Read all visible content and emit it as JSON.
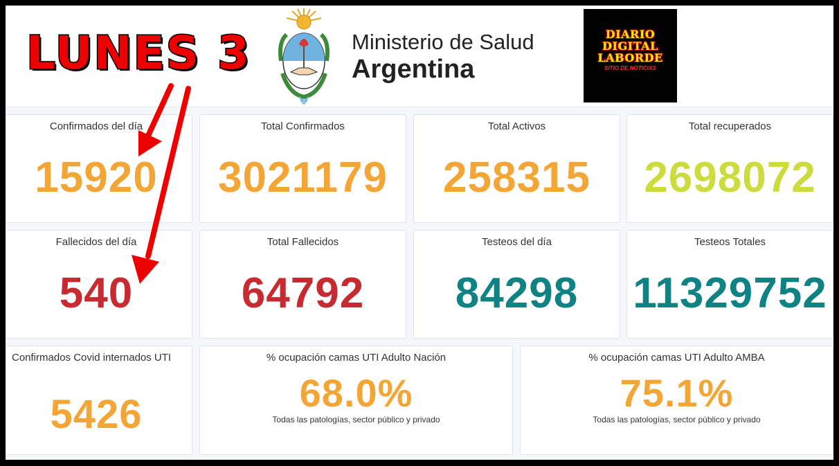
{
  "header": {
    "day_label": "LUNES 3",
    "ministry_line1": "Ministerio de Salud",
    "ministry_line2": "Argentina",
    "coat_of_arms": "coat-of-arms-icon",
    "logo_lines": [
      "DIARIO",
      "DIGITAL",
      "LABORDE"
    ],
    "logo_sub": "SITIO DE NOTICIAS"
  },
  "row1": [
    {
      "title": "Confirmados del día",
      "value": "15920"
    },
    {
      "title": "Total Confirmados",
      "value": "3021179"
    },
    {
      "title": "Total Activos",
      "value": "258315"
    },
    {
      "title": "Total recuperados",
      "value": "2698072"
    }
  ],
  "row2": [
    {
      "title": "Fallecidos del día",
      "value": "540"
    },
    {
      "title": "Total Fallecidos",
      "value": "64792"
    },
    {
      "title": "Testeos del día",
      "value": "84298"
    },
    {
      "title": "Testeos Totales",
      "value": "11329752"
    }
  ],
  "row3": [
    {
      "title": "Confirmados Covid internados UTI",
      "value": "5426"
    },
    {
      "title": "% ocupación camas UTI Adulto Nación",
      "value": "68.0%",
      "note": "Todas las patologías, sector público y privado"
    },
    {
      "title": "% ocupación camas UTI Adulto AMBA",
      "value": "75.1%",
      "note": "Todas las patologías, sector público y privado"
    }
  ],
  "colors": {
    "orange": "#f3a635",
    "lime": "#cbdc3c",
    "red": "#c72a30",
    "teal": "#0f8284",
    "arrow": "#ee0000"
  }
}
